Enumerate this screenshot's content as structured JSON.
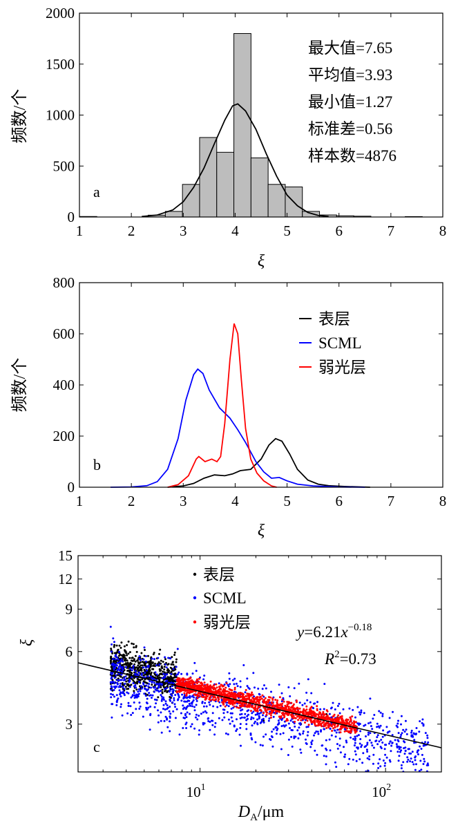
{
  "chart_data": [
    {
      "type": "bar",
      "panel_label": "a",
      "xlabel": "ξ",
      "ylabel": "频数/个",
      "xlim": [
        1,
        8
      ],
      "ylim": [
        0,
        2000
      ],
      "x_ticks": [
        "1",
        "2",
        "3",
        "4",
        "5",
        "6",
        "7",
        "8"
      ],
      "y_ticks": [
        "0",
        "500",
        "1000",
        "1500",
        "2000"
      ],
      "bin_width": 0.33,
      "bins": [
        {
          "x": 1.17,
          "value": 5
        },
        {
          "x": 2.49,
          "value": 18
        },
        {
          "x": 2.82,
          "value": 55
        },
        {
          "x": 3.15,
          "value": 320
        },
        {
          "x": 3.48,
          "value": 780
        },
        {
          "x": 3.81,
          "value": 635
        },
        {
          "x": 4.14,
          "value": 1800
        },
        {
          "x": 4.47,
          "value": 580
        },
        {
          "x": 4.8,
          "value": 320
        },
        {
          "x": 5.13,
          "value": 295
        },
        {
          "x": 5.46,
          "value": 55
        },
        {
          "x": 5.79,
          "value": 20
        },
        {
          "x": 6.12,
          "value": 12
        },
        {
          "x": 6.45,
          "value": 8
        },
        {
          "x": 7.44,
          "value": 4
        }
      ],
      "fit_curve": [
        [
          2.2,
          5
        ],
        [
          2.5,
          20
        ],
        [
          2.8,
          70
        ],
        [
          3.0,
          150
        ],
        [
          3.2,
          290
        ],
        [
          3.4,
          480
        ],
        [
          3.6,
          720
        ],
        [
          3.8,
          950
        ],
        [
          3.95,
          1090
        ],
        [
          4.05,
          1110
        ],
        [
          4.2,
          1040
        ],
        [
          4.4,
          860
        ],
        [
          4.6,
          620
        ],
        [
          4.8,
          400
        ],
        [
          5.0,
          215
        ],
        [
          5.2,
          110
        ],
        [
          5.4,
          45
        ],
        [
          5.6,
          15
        ],
        [
          5.8,
          5
        ]
      ],
      "stats": [
        "最大值=7.65",
        "平均值=3.93",
        "最小值=1.27",
        "标准差=0.56",
        "样本数=4876"
      ]
    },
    {
      "type": "line",
      "panel_label": "b",
      "xlabel": "ξ",
      "ylabel": "频数/个",
      "xlim": [
        1,
        8
      ],
      "ylim": [
        0,
        800
      ],
      "x_ticks": [
        "1",
        "2",
        "3",
        "4",
        "5",
        "6",
        "7",
        "8"
      ],
      "y_ticks": [
        "0",
        "200",
        "400",
        "600",
        "800"
      ],
      "legend_position": "top-right",
      "series": [
        {
          "name": "表层",
          "color": "#000000",
          "points": [
            [
              2.7,
              0
            ],
            [
              3.0,
              5
            ],
            [
              3.2,
              15
            ],
            [
              3.4,
              35
            ],
            [
              3.6,
              48
            ],
            [
              3.8,
              45
            ],
            [
              3.95,
              52
            ],
            [
              4.1,
              65
            ],
            [
              4.3,
              70
            ],
            [
              4.5,
              110
            ],
            [
              4.65,
              165
            ],
            [
              4.78,
              190
            ],
            [
              4.9,
              180
            ],
            [
              5.05,
              130
            ],
            [
              5.2,
              70
            ],
            [
              5.4,
              28
            ],
            [
              5.6,
              12
            ],
            [
              5.8,
              6
            ],
            [
              6.1,
              3
            ],
            [
              6.6,
              0
            ]
          ]
        },
        {
          "name": "SCML",
          "color": "#0000ff",
          "points": [
            [
              1.6,
              0
            ],
            [
              2.0,
              1
            ],
            [
              2.3,
              6
            ],
            [
              2.5,
              22
            ],
            [
              2.7,
              70
            ],
            [
              2.9,
              190
            ],
            [
              3.05,
              340
            ],
            [
              3.2,
              440
            ],
            [
              3.28,
              462
            ],
            [
              3.38,
              445
            ],
            [
              3.5,
              380
            ],
            [
              3.7,
              310
            ],
            [
              3.9,
              270
            ],
            [
              4.05,
              225
            ],
            [
              4.2,
              175
            ],
            [
              4.4,
              100
            ],
            [
              4.55,
              60
            ],
            [
              4.7,
              35
            ],
            [
              4.85,
              38
            ],
            [
              5.0,
              25
            ],
            [
              5.2,
              12
            ],
            [
              5.5,
              5
            ],
            [
              6.0,
              1
            ],
            [
              6.5,
              0
            ]
          ]
        },
        {
          "name": "弱光层",
          "color": "#ff0000",
          "points": [
            [
              2.7,
              0
            ],
            [
              2.9,
              10
            ],
            [
              3.1,
              45
            ],
            [
              3.25,
              110
            ],
            [
              3.3,
              120
            ],
            [
              3.42,
              100
            ],
            [
              3.55,
              110
            ],
            [
              3.65,
              100
            ],
            [
              3.72,
              120
            ],
            [
              3.8,
              250
            ],
            [
              3.9,
              500
            ],
            [
              3.98,
              640
            ],
            [
              4.05,
              600
            ],
            [
              4.12,
              420
            ],
            [
              4.2,
              230
            ],
            [
              4.3,
              110
            ],
            [
              4.42,
              55
            ],
            [
              4.55,
              25
            ],
            [
              4.7,
              5
            ],
            [
              4.8,
              0
            ]
          ]
        }
      ]
    },
    {
      "type": "scatter",
      "panel_label": "c",
      "xlabel_main": "D",
      "xlabel_sub": "A",
      "xlabel_unit": "/μm",
      "ylabel": "ξ",
      "x_scale": "log",
      "y_scale": "log",
      "xlim": [
        2.2,
        200
      ],
      "ylim": [
        1.9,
        15
      ],
      "x_ticks": [
        {
          "value": 10,
          "base": "10",
          "exp": "1"
        },
        {
          "value": 100,
          "base": "10",
          "exp": "2"
        }
      ],
      "y_ticks": [
        {
          "value": 3,
          "label": "3"
        },
        {
          "value": 6,
          "label": "6"
        },
        {
          "value": 9,
          "label": "9"
        },
        {
          "value": 12,
          "label": "12"
        },
        {
          "value": 15,
          "label": "15"
        }
      ],
      "legend_position": "top-left",
      "series": [
        {
          "name": "表层",
          "color": "#000000",
          "x_range": [
            3.3,
            7.5
          ],
          "a": 6.0,
          "b": -0.12,
          "spread": 0.2,
          "count": 650,
          "extra_points": [
            [
              22,
              3.1
            ],
            [
              35,
              3.0
            ],
            [
              55,
              3.2
            ],
            [
              48,
              3.3
            ]
          ]
        },
        {
          "name": "SCML",
          "color": "#0000ff",
          "x_range": [
            3.3,
            170
          ],
          "a": 5.6,
          "b": -0.17,
          "spread": 0.3,
          "count": 1100,
          "extra_points": [
            [
              3.3,
              7.6
            ],
            [
              3.4,
              6.8
            ],
            [
              160,
              2.05
            ],
            [
              168,
              1.9
            ],
            [
              120,
              2.3
            ],
            [
              70,
              2.4
            ]
          ]
        },
        {
          "name": "弱光层",
          "color": "#ff0000",
          "x_range": [
            7.5,
            70
          ],
          "a": 6.4,
          "b": -0.185,
          "spread": 0.08,
          "count": 1400,
          "extra_points": []
        }
      ],
      "fit": {
        "a": 6.21,
        "b": -0.18
      },
      "fit_equation": {
        "y": "y",
        "eq": "=6.21",
        "x": "x",
        "exp": "−0.18"
      },
      "r2": {
        "r": "R",
        "exp": "2",
        "value": "=0.73"
      }
    }
  ]
}
